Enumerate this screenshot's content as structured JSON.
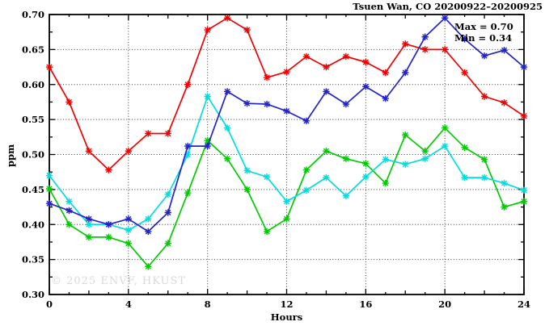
{
  "header": {
    "title": "Tsuen Wan, CO 20200922–20200925"
  },
  "legend": {
    "max_label": "Max = 0.70",
    "min_label": "Min = 0.34"
  },
  "watermark": "© 2025  ENVF, HKUST",
  "chart_data": {
    "type": "line",
    "title": "Tsuen Wan, CO 20200922–20200925",
    "xlabel": "Hours",
    "ylabel": "ppm",
    "xlim": [
      0,
      24
    ],
    "ylim": [
      0.3,
      0.7
    ],
    "x_ticks": [
      0,
      4,
      8,
      12,
      16,
      20,
      24
    ],
    "x_minor_step": 1,
    "y_major_step": 0.05,
    "y_minor_step": 0.025,
    "grid": "dotted",
    "legend_position": "top-right",
    "annotations": [
      "Max = 0.70",
      "Min = 0.34"
    ],
    "stats": {
      "max": 0.7,
      "min": 0.34
    },
    "x": [
      0,
      1,
      2,
      3,
      4,
      5,
      6,
      7,
      8,
      9,
      10,
      11,
      12,
      13,
      14,
      15,
      16,
      17,
      18,
      19,
      20,
      21,
      22,
      23,
      24
    ],
    "series": [
      {
        "name": "series-red",
        "color": "#f40000",
        "values": [
          0.625,
          0.575,
          0.505,
          0.478,
          0.505,
          0.53,
          0.53,
          0.6,
          0.678,
          0.695,
          0.678,
          0.61,
          0.618,
          0.64,
          0.625,
          0.64,
          0.632,
          0.617,
          0.658,
          0.65,
          0.65,
          0.617,
          0.583,
          0.574,
          0.555
        ]
      },
      {
        "name": "series-green",
        "color": "#00cc00",
        "values": [
          0.451,
          0.4,
          0.382,
          0.382,
          0.373,
          0.34,
          0.373,
          0.445,
          0.52,
          0.494,
          0.45,
          0.39,
          0.408,
          0.478,
          0.505,
          0.494,
          0.487,
          0.459,
          0.528,
          0.505,
          0.538,
          0.51,
          0.493,
          0.425,
          0.433
        ]
      },
      {
        "name": "series-cyan",
        "color": "#00dede",
        "values": [
          0.47,
          0.433,
          0.4,
          0.4,
          0.392,
          0.408,
          0.443,
          0.5,
          0.583,
          0.538,
          0.477,
          0.468,
          0.433,
          0.449,
          0.467,
          0.441,
          0.468,
          0.493,
          0.486,
          0.494,
          0.512,
          0.467,
          0.467,
          0.459,
          0.449
        ]
      },
      {
        "name": "series-blue",
        "color": "#2323cc",
        "values": [
          0.43,
          0.42,
          0.408,
          0.4,
          0.408,
          0.39,
          0.417,
          0.512,
          0.512,
          0.59,
          0.573,
          0.572,
          0.562,
          0.548,
          0.59,
          0.572,
          0.597,
          0.58,
          0.617,
          0.668,
          0.695,
          0.665,
          0.641,
          0.649,
          0.625
        ]
      }
    ]
  }
}
